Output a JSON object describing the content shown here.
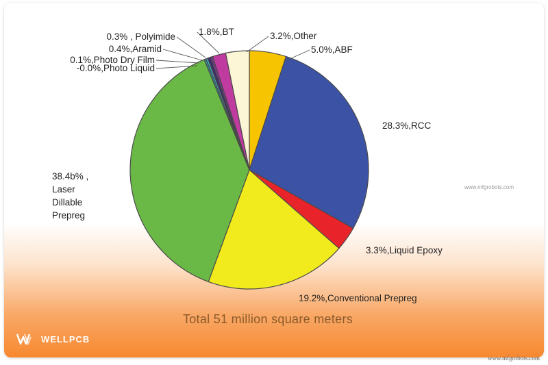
{
  "chart_data": {
    "type": "pie",
    "title": "Total 51 million square meters",
    "slices": [
      {
        "label": "5.0%,ABF",
        "value": 5.0,
        "color": "#f6c400"
      },
      {
        "label": "28.3%,RCC",
        "value": 28.3,
        "color": "#3b52a5"
      },
      {
        "label": "3.3%,Liquid Epoxy",
        "value": 3.3,
        "color": "#e8242a"
      },
      {
        "label": "19.2%,Conventional Prepreg",
        "value": 19.2,
        "color": "#f1ea1c"
      },
      {
        "label": "38.4b% ,\nLaser\nDillable\nPrepreg",
        "value": 38.4,
        "color": "#6ab845"
      },
      {
        "label": "-0.0%,Photo Liquid",
        "value": 0.0,
        "color": "#2a8a9a"
      },
      {
        "label": "0.1%,Photo Dry Film",
        "value": 0.1,
        "color": "#3bb6c8"
      },
      {
        "label": "0.4%,Aramid",
        "value": 0.4,
        "color": "#3d2b6b"
      },
      {
        "label": "0.3% , Polyimide",
        "value": 0.3,
        "color": "#7a3a8a"
      },
      {
        "label": "1.8%,BT",
        "value": 1.8,
        "color": "#c03ba0"
      },
      {
        "label": "3.2%,Other",
        "value": 3.2,
        "color": "#fdf6d6"
      }
    ]
  },
  "footer": {
    "caption": "Total 51 million square meters",
    "brand": "WELLPCB",
    "site_small": "www.mfgrobots.com",
    "watermark": "www.mfgrobots.com"
  }
}
